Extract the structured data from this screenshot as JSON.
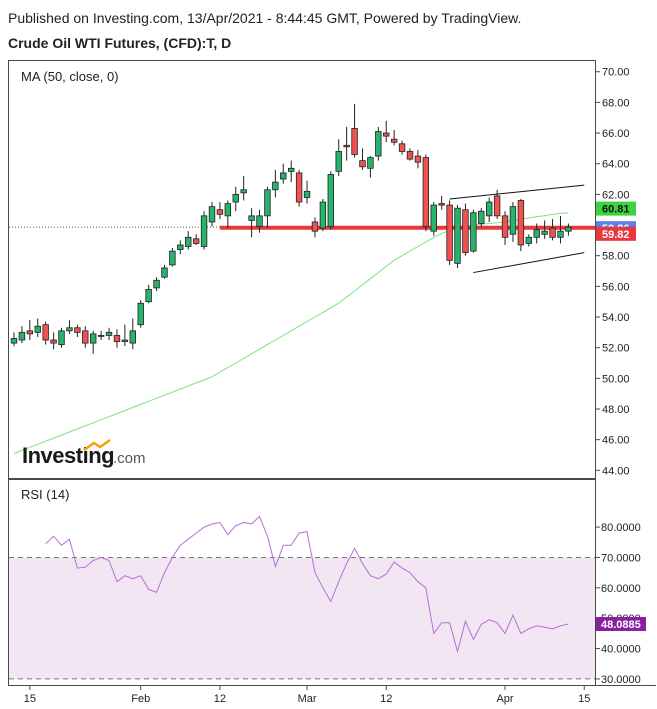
{
  "header": {
    "published": "Published on Investing.com, 13/Apr/2021 - 8:44:45 GMT, Powered by TradingView.",
    "instrument": "Crude Oil WTI Futures, (CFD):T, D"
  },
  "logo": {
    "brand": "Investing",
    "suffix": ".com"
  },
  "colors": {
    "up": "#26b36b",
    "down": "#ef5350",
    "ma": "#7ee37e",
    "support": "#e8383d",
    "rsi": "#b36fd8",
    "rsi_band": "#f3e6f3",
    "ma_badge": "#3fd23f",
    "price_badge": "#5b7fe3",
    "support_badge": "#e8383d",
    "rsi_badge": "#8a1fa0"
  },
  "chart_data": [
    {
      "type": "candlestick",
      "indicator_label": "MA (50, close, 0)",
      "ylim": [
        43.5,
        70.7
      ],
      "y_ticks": [
        "44.00",
        "46.00",
        "48.00",
        "50.00",
        "52.00",
        "54.00",
        "56.00",
        "58.00",
        "60.00",
        "62.00",
        "64.00",
        "66.00",
        "68.00",
        "70.00"
      ],
      "x_ticks": [
        "15",
        "Feb",
        "12",
        "Mar",
        "12",
        "Apr",
        "15"
      ],
      "last_close": 59.86,
      "badges": [
        {
          "label": "60.81",
          "value": 60.81,
          "role": "ma"
        },
        {
          "label": "59.86",
          "value": 59.86,
          "role": "price"
        },
        {
          "label": "59.82",
          "value": 59.82,
          "role": "support"
        }
      ],
      "support_level": 59.82,
      "candles": [
        [
          52.3,
          53.0,
          52.1,
          52.6
        ],
        [
          52.5,
          53.4,
          52.3,
          53.0
        ],
        [
          53.1,
          53.8,
          52.5,
          52.9
        ],
        [
          53.0,
          53.9,
          52.7,
          53.4
        ],
        [
          53.5,
          53.7,
          52.2,
          52.5
        ],
        [
          52.5,
          53.0,
          51.9,
          52.3
        ],
        [
          52.2,
          53.3,
          52.0,
          53.1
        ],
        [
          53.1,
          53.8,
          52.9,
          53.3
        ],
        [
          53.3,
          53.5,
          52.7,
          53.0
        ],
        [
          53.1,
          53.4,
          52.0,
          52.3
        ],
        [
          52.3,
          53.1,
          51.6,
          52.9
        ],
        [
          52.8,
          53.1,
          52.5,
          52.8
        ],
        [
          52.8,
          53.3,
          52.5,
          53.0
        ],
        [
          52.8,
          53.2,
          52.0,
          52.4
        ],
        [
          52.4,
          53.5,
          52.1,
          52.5
        ],
        [
          52.3,
          53.9,
          51.9,
          53.1
        ],
        [
          53.5,
          55.1,
          53.3,
          54.9
        ],
        [
          55.0,
          56.1,
          54.9,
          55.8
        ],
        [
          55.9,
          56.6,
          55.7,
          56.4
        ],
        [
          56.6,
          57.4,
          56.5,
          57.2
        ],
        [
          57.4,
          58.5,
          57.3,
          58.3
        ],
        [
          58.4,
          59.0,
          58.1,
          58.7
        ],
        [
          58.6,
          59.6,
          58.4,
          59.2
        ],
        [
          59.1,
          59.4,
          58.7,
          58.8
        ],
        [
          58.6,
          60.9,
          58.4,
          60.6
        ],
        [
          60.2,
          61.5,
          59.9,
          61.2
        ],
        [
          61.0,
          61.5,
          60.4,
          60.7
        ],
        [
          60.6,
          61.6,
          59.8,
          61.4
        ],
        [
          61.5,
          62.5,
          60.9,
          62.0
        ],
        [
          62.1,
          63.2,
          61.6,
          62.3
        ],
        [
          60.3,
          61.1,
          59.2,
          60.6
        ],
        [
          59.9,
          61.0,
          59.5,
          60.6
        ],
        [
          60.6,
          62.5,
          59.8,
          62.3
        ],
        [
          62.3,
          63.6,
          61.8,
          62.8
        ],
        [
          63.0,
          64.0,
          62.7,
          63.4
        ],
        [
          63.5,
          64.2,
          62.8,
          63.7
        ],
        [
          63.4,
          63.6,
          61.2,
          61.5
        ],
        [
          61.8,
          62.9,
          61.4,
          62.2
        ],
        [
          60.2,
          60.5,
          59.2,
          59.6
        ],
        [
          59.8,
          61.7,
          59.6,
          61.5
        ],
        [
          59.9,
          63.5,
          59.7,
          63.3
        ],
        [
          63.5,
          65.6,
          63.2,
          64.8
        ],
        [
          65.2,
          66.4,
          64.2,
          65.1
        ],
        [
          66.3,
          67.9,
          64.4,
          64.6
        ],
        [
          64.2,
          65.0,
          63.6,
          63.8
        ],
        [
          63.7,
          64.5,
          63.1,
          64.4
        ],
        [
          64.5,
          66.4,
          64.2,
          66.1
        ],
        [
          66.0,
          66.8,
          65.4,
          65.8
        ],
        [
          65.6,
          66.2,
          65.2,
          65.4
        ],
        [
          65.3,
          65.5,
          64.6,
          64.8
        ],
        [
          64.8,
          65.0,
          64.2,
          64.3
        ],
        [
          64.5,
          64.9,
          63.7,
          64.1
        ],
        [
          64.4,
          64.6,
          59.6,
          59.9
        ],
        [
          59.6,
          61.5,
          59.3,
          61.3
        ],
        [
          61.4,
          61.9,
          61.0,
          61.3
        ],
        [
          61.3,
          61.6,
          57.4,
          57.7
        ],
        [
          57.5,
          61.3,
          57.2,
          61.1
        ],
        [
          61.0,
          61.4,
          58.0,
          58.2
        ],
        [
          58.3,
          61.0,
          58.2,
          60.8
        ],
        [
          60.1,
          61.1,
          59.9,
          60.9
        ],
        [
          60.6,
          61.8,
          60.2,
          61.5
        ],
        [
          61.9,
          62.3,
          60.4,
          60.6
        ],
        [
          60.6,
          60.9,
          58.7,
          59.2
        ],
        [
          59.4,
          61.5,
          58.9,
          61.2
        ],
        [
          61.6,
          61.7,
          58.3,
          58.7
        ],
        [
          58.8,
          59.4,
          58.6,
          59.2
        ],
        [
          59.2,
          60.1,
          58.8,
          59.7
        ],
        [
          59.4,
          60.3,
          59.1,
          59.6
        ],
        [
          59.8,
          60.4,
          59.0,
          59.2
        ],
        [
          59.2,
          60.6,
          58.8,
          59.6
        ],
        [
          59.6,
          60.1,
          59.3,
          59.86
        ]
      ],
      "ma_series": {
        "name": "MA (50, close, 0)",
        "values": [
          45.1,
          45.3,
          45.5,
          45.7,
          45.9,
          46.1,
          46.3,
          46.5,
          46.7,
          46.9,
          47.1,
          47.3,
          47.5,
          47.7,
          47.9,
          48.1,
          48.3,
          48.5,
          48.7,
          48.9,
          49.1,
          49.3,
          49.5,
          49.7,
          49.9,
          50.1,
          50.4,
          50.7,
          51.0,
          51.3,
          51.6,
          51.9,
          52.2,
          52.5,
          52.8,
          53.1,
          53.4,
          53.7,
          54.0,
          54.3,
          54.6,
          54.9,
          55.3,
          55.7,
          56.1,
          56.5,
          56.9,
          57.3,
          57.7,
          58.0,
          58.3,
          58.6,
          58.9,
          59.2,
          59.45,
          59.65,
          59.8,
          59.9,
          60.0,
          60.05,
          60.1,
          60.15,
          60.2,
          60.3,
          60.4,
          60.45,
          60.55,
          60.6,
          60.7,
          60.75,
          60.81
        ]
      },
      "channel": {
        "upper": {
          "start": [
            55,
            61.7
          ],
          "end": [
            72,
            62.6
          ]
        },
        "lower": {
          "start": [
            58,
            56.9
          ],
          "end": [
            72,
            58.2
          ]
        }
      },
      "support_line": {
        "from": 26,
        "to": 70,
        "value": 59.82
      }
    },
    {
      "type": "line",
      "label": "RSI (14)",
      "ylim": [
        28.0,
        95.5
      ],
      "y_ticks": [
        "30.0000",
        "40.0000",
        "50.0000",
        "60.0000",
        "70.0000",
        "80.0000"
      ],
      "band": [
        30,
        70
      ],
      "last_value": 48.0885,
      "badge": "48.0885",
      "series": {
        "name": "RSI (14)",
        "values": [
          74.5,
          77.0,
          74.0,
          76.0,
          66.5,
          66.8,
          69.0,
          70.0,
          69.0,
          62.0,
          64.0,
          63.0,
          64.0,
          59.5,
          58.5,
          65.0,
          70.0,
          74.0,
          76.0,
          78.0,
          80.0,
          81.0,
          81.5,
          77.5,
          80.5,
          81.5,
          81.0,
          83.5,
          77.0,
          67.0,
          74.0,
          74.0,
          78.0,
          78.5,
          65.0,
          60.0,
          55.5,
          62.0,
          68.0,
          73.0,
          68.0,
          64.0,
          63.0,
          64.5,
          68.5,
          66.5,
          65.0,
          62.0,
          60.0,
          45.0,
          48.5,
          48.5,
          39.0,
          49.0,
          43.0,
          48.0,
          49.5,
          48.5,
          45.0,
          51.0,
          45.0,
          46.5,
          47.5,
          47.0,
          46.5,
          47.5,
          48.0885
        ]
      }
    }
  ]
}
